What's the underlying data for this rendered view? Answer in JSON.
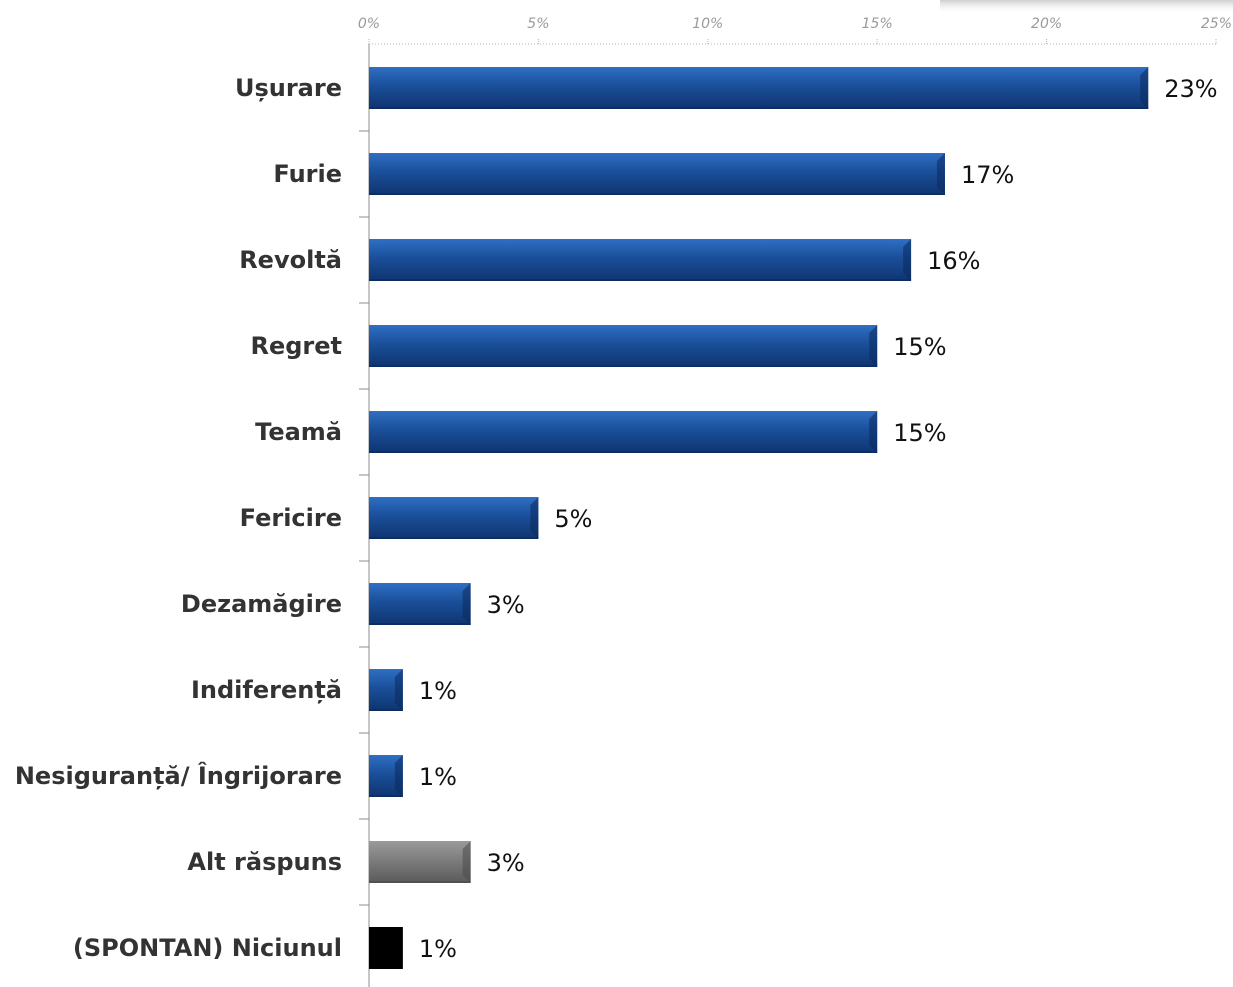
{
  "chart_data": {
    "type": "bar",
    "orientation": "horizontal",
    "categories": [
      "Ușurare",
      "Furie",
      "Revoltă",
      "Regret",
      "Teamă",
      "Fericire",
      "Dezamăgire",
      "Indiferență",
      "Nesiguranță/ Îngrijorare",
      "Alt răspuns",
      "(SPONTAN) Niciunul"
    ],
    "values": [
      23,
      17,
      16,
      15,
      15,
      5,
      3,
      1,
      1,
      3,
      1
    ],
    "value_labels": [
      "23%",
      "17%",
      "16%",
      "15%",
      "15%",
      "5%",
      "3%",
      "1%",
      "1%",
      "3%",
      "1%"
    ],
    "bar_colors": [
      "#1a4f99",
      "#1a4f99",
      "#1a4f99",
      "#1a4f99",
      "#1a4f99",
      "#1a4f99",
      "#1a4f99",
      "#1a4f99",
      "#1a4f99",
      "#7a7a7a",
      "#000000"
    ],
    "xlim": [
      0,
      25
    ],
    "xticks": [
      0,
      5,
      10,
      15,
      20,
      25
    ],
    "xtick_labels": [
      "0%",
      "5%",
      "10%",
      "15%",
      "20%",
      "25%"
    ],
    "xaxis_position": "top",
    "grid": false,
    "legend": "none",
    "title": "",
    "xlabel": "",
    "ylabel": ""
  }
}
